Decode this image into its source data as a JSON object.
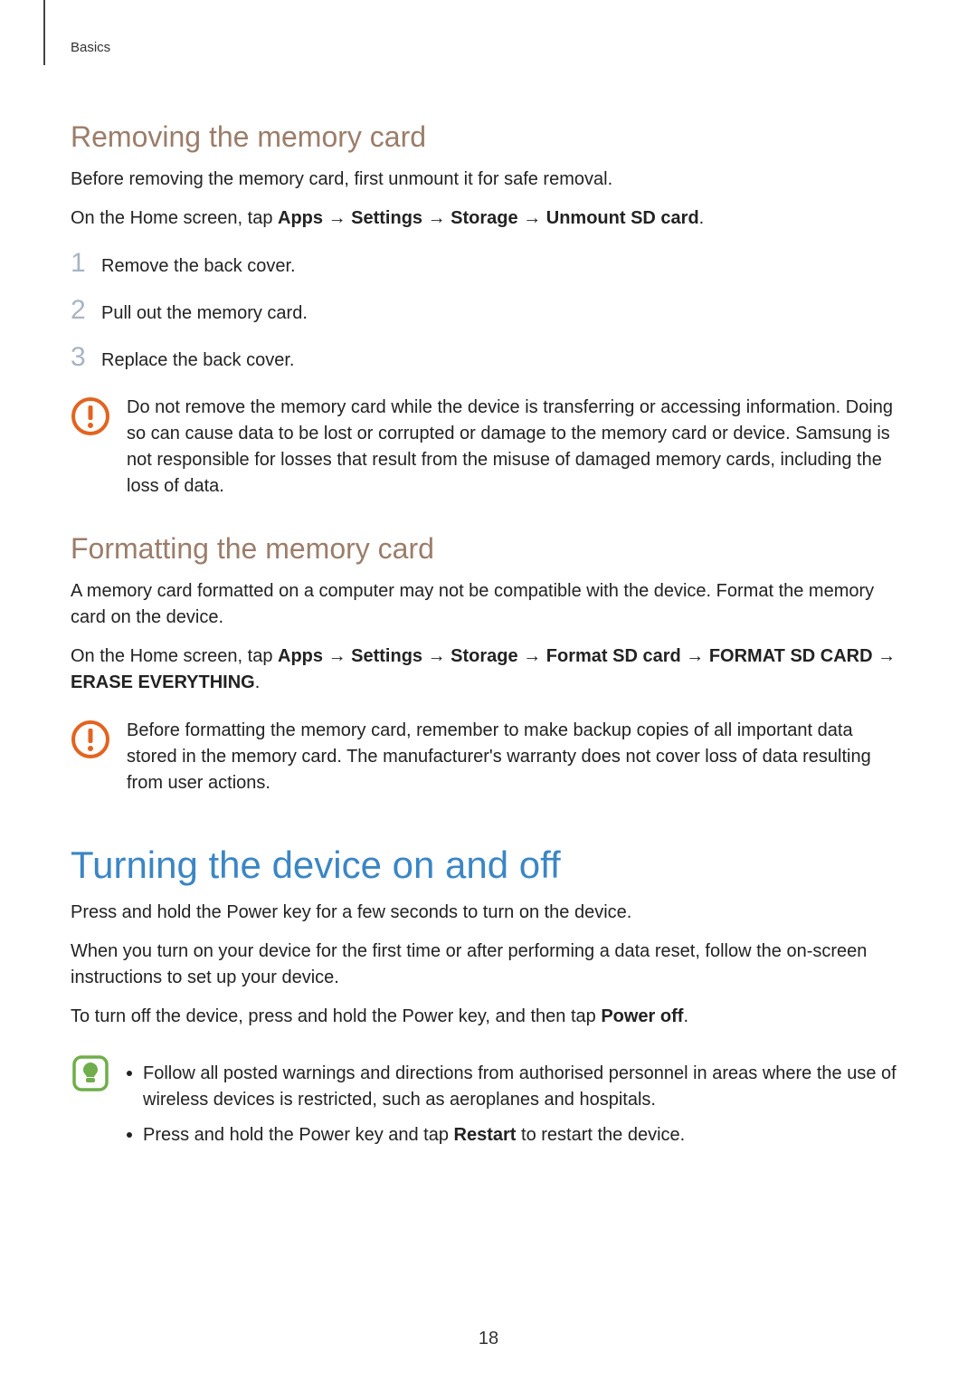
{
  "header": {
    "section": "Basics"
  },
  "removing": {
    "heading": "Removing the memory card",
    "intro": "Before removing the memory card, first unmount it for safe removal.",
    "path_prefix": "On the Home screen, tap ",
    "path_segments": [
      "Apps",
      "Settings",
      "Storage",
      "Unmount SD card"
    ],
    "path_suffix": ".",
    "steps": [
      "Remove the back cover.",
      "Pull out the memory card.",
      "Replace the back cover."
    ],
    "warning": "Do not remove the memory card while the device is transferring or accessing information. Doing so can cause data to be lost or corrupted or damage to the memory card or device. Samsung is not responsible for losses that result from the misuse of damaged memory cards, including the loss of data."
  },
  "formatting": {
    "heading": "Formatting the memory card",
    "intro": "A memory card formatted on a computer may not be compatible with the device. Format the memory card on the device.",
    "path_prefix": "On the Home screen, tap ",
    "path_segments": [
      "Apps",
      "Settings",
      "Storage",
      "Format SD card",
      "FORMAT SD CARD",
      "ERASE EVERYTHING"
    ],
    "path_suffix": ".",
    "warning": "Before formatting the memory card, remember to make backup copies of all important data stored in the memory card. The manufacturer's warranty does not cover loss of data resulting from user actions."
  },
  "turning": {
    "heading": "Turning the device on and off",
    "p1": "Press and hold the Power key for a few seconds to turn on the device.",
    "p2": "When you turn on your device for the first time or after performing a data reset, follow the on-screen instructions to set up your device.",
    "p3_prefix": "To turn off the device, press and hold the Power key, and then tap ",
    "p3_bold": "Power off",
    "p3_suffix": ".",
    "notes": [
      "Follow all posted warnings and directions from authorised personnel in areas where the use of wireless devices is restricted, such as aeroplanes and hospitals.",
      "Press and hold the Power key and tap Restart to restart the device."
    ],
    "note_bold_word": "Restart"
  },
  "page_number": "18",
  "colors": {
    "h1": "#3b86c4",
    "h2": "#9b7d6a",
    "step_num": "#a9b4c2",
    "warn": "#e2641f",
    "note": "#6fae4a"
  }
}
